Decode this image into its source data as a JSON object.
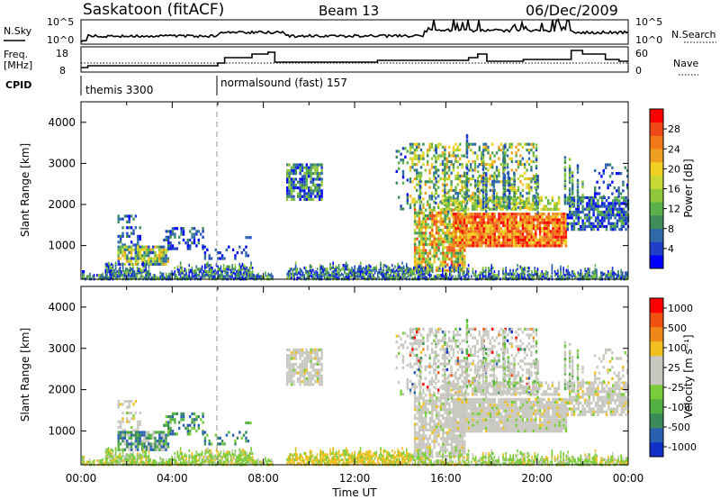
{
  "header": {
    "station": "Saskatoon (fitACF)",
    "beam": "Beam 13",
    "date": "06/Dec/2009"
  },
  "noise_panel": {
    "left_label": "N.Sky",
    "right_label": "N.Search",
    "left_ticks": [
      "10^5",
      "10^0"
    ],
    "right_ticks": [
      "10^5",
      "10^0"
    ]
  },
  "freq_panel": {
    "left_label_1": "Freq.",
    "left_label_2": "[MHz]",
    "right_label": "Nave",
    "left_ticks": [
      "18",
      "8"
    ],
    "right_ticks": [
      "60",
      "0"
    ]
  },
  "cpid": {
    "label": "CPID",
    "segments": [
      {
        "name": "themis 3300",
        "start_hour": 0
      },
      {
        "name": "normalsound (fast) 157",
        "start_hour": 6
      }
    ]
  },
  "chart_data": [
    {
      "type": "heatmap",
      "ylabel": "Slant Range [km]",
      "xlabel": "",
      "ylim": [
        180,
        4500
      ],
      "y_ticks": [
        1000,
        2000,
        3000,
        4000
      ],
      "colorbar": {
        "label": "Power [dB]",
        "ticks": [
          "4",
          "8",
          "12",
          "16",
          "20",
          "24",
          "28"
        ],
        "colors": [
          "#0000ff",
          "#1f3fc8",
          "#2e6aa8",
          "#3d8c5a",
          "#5cb04a",
          "#8ec83a",
          "#c8d832",
          "#f0d020",
          "#f0a020",
          "#f07818",
          "#f04818",
          "#ff0000"
        ]
      }
    },
    {
      "type": "heatmap",
      "ylabel": "Slant Range [km]",
      "xlabel": "Time UT",
      "ylim": [
        180,
        4500
      ],
      "y_ticks": [
        1000,
        2000,
        3000,
        4000
      ],
      "x_ticks": [
        "00:00",
        "04:00",
        "08:00",
        "12:00",
        "16:00",
        "20:00",
        "00:00"
      ],
      "xlim_hours": [
        0,
        24
      ],
      "colorbar": {
        "label": "Velocity [m s⁻¹]",
        "ticks": [
          "1000",
          "500",
          "100",
          "25",
          "-25",
          "-100",
          "-500",
          "-1000"
        ],
        "colors": [
          "#1030c8",
          "#2a60b0",
          "#3a8a5a",
          "#50b040",
          "#7acc3a",
          "#c8c8c0",
          "#c8c8c0",
          "#f0c020",
          "#f08818",
          "#f05010",
          "#ff0000"
        ]
      }
    }
  ]
}
